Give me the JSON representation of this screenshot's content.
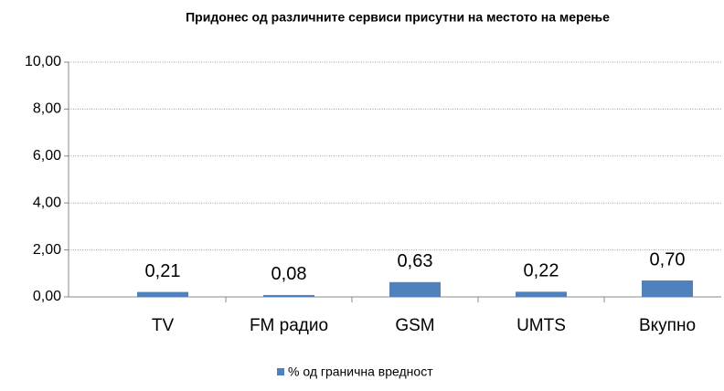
{
  "chart_data": {
    "type": "bar",
    "title": "Придонес од различните сервиси присутни на местото на мерење",
    "categories": [
      "TV",
      "FM радио",
      "GSM",
      "UMTS",
      "Вкупно"
    ],
    "series": [
      {
        "name": "% од гранична вредност",
        "color": "#4f81bd",
        "values": [
          0.21,
          0.08,
          0.63,
          0.22,
          0.7
        ],
        "value_labels": [
          "0,21",
          "0,08",
          "0,63",
          "0,22",
          "0,70"
        ]
      }
    ],
    "ylim": [
      0,
      10
    ],
    "yticks": [
      {
        "value": 0,
        "label": "0,00"
      },
      {
        "value": 2,
        "label": "2,00"
      },
      {
        "value": 4,
        "label": "4,00"
      },
      {
        "value": 6,
        "label": "6,00"
      },
      {
        "value": 8,
        "label": "8,00"
      },
      {
        "value": 10,
        "label": "10,00"
      }
    ],
    "grid": true,
    "legend": "bottom"
  }
}
